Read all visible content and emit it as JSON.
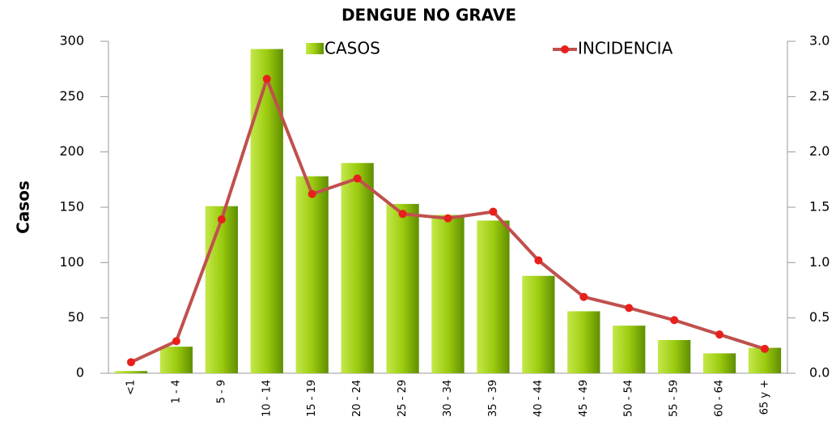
{
  "chart_data": {
    "type": "bar_line",
    "title": "DENGUE NO GRAVE",
    "y_label": "Casos",
    "categories": [
      "<1",
      "1 - 4",
      "5 - 9",
      "10 - 14",
      "15 - 19",
      "20 - 24",
      "25 - 29",
      "30 - 34",
      "35 - 39",
      "40 - 44",
      "45 - 49",
      "50 - 54",
      "55 - 59",
      "60 - 64",
      "65 y +"
    ],
    "series": [
      {
        "name": "CASOS",
        "type": "bar",
        "color": "#8cc000",
        "values": [
          2,
          24,
          151,
          293,
          178,
          190,
          153,
          143,
          138,
          88,
          56,
          43,
          30,
          18,
          23
        ]
      },
      {
        "name": "INCIDENCIA",
        "type": "line",
        "axis": "y2",
        "color": "#c0504d",
        "values": [
          0.1,
          0.29,
          1.39,
          2.66,
          1.62,
          1.76,
          1.44,
          1.4,
          1.46,
          1.02,
          0.69,
          0.59,
          0.48,
          0.35,
          0.22
        ]
      }
    ],
    "ylim": [
      0,
      300
    ],
    "yticks": [
      0,
      50,
      100,
      150,
      200,
      250,
      300
    ],
    "y2lim": [
      0,
      3
    ],
    "y2ticks": [
      {
        "value": 0,
        "label": "0.0"
      },
      0.5,
      {
        "value": 1,
        "label": "1.0"
      },
      1.5,
      {
        "value": 2,
        "label": "2.0"
      },
      2.5,
      {
        "value": 3,
        "label": "3.0"
      }
    ],
    "legend": "top"
  }
}
